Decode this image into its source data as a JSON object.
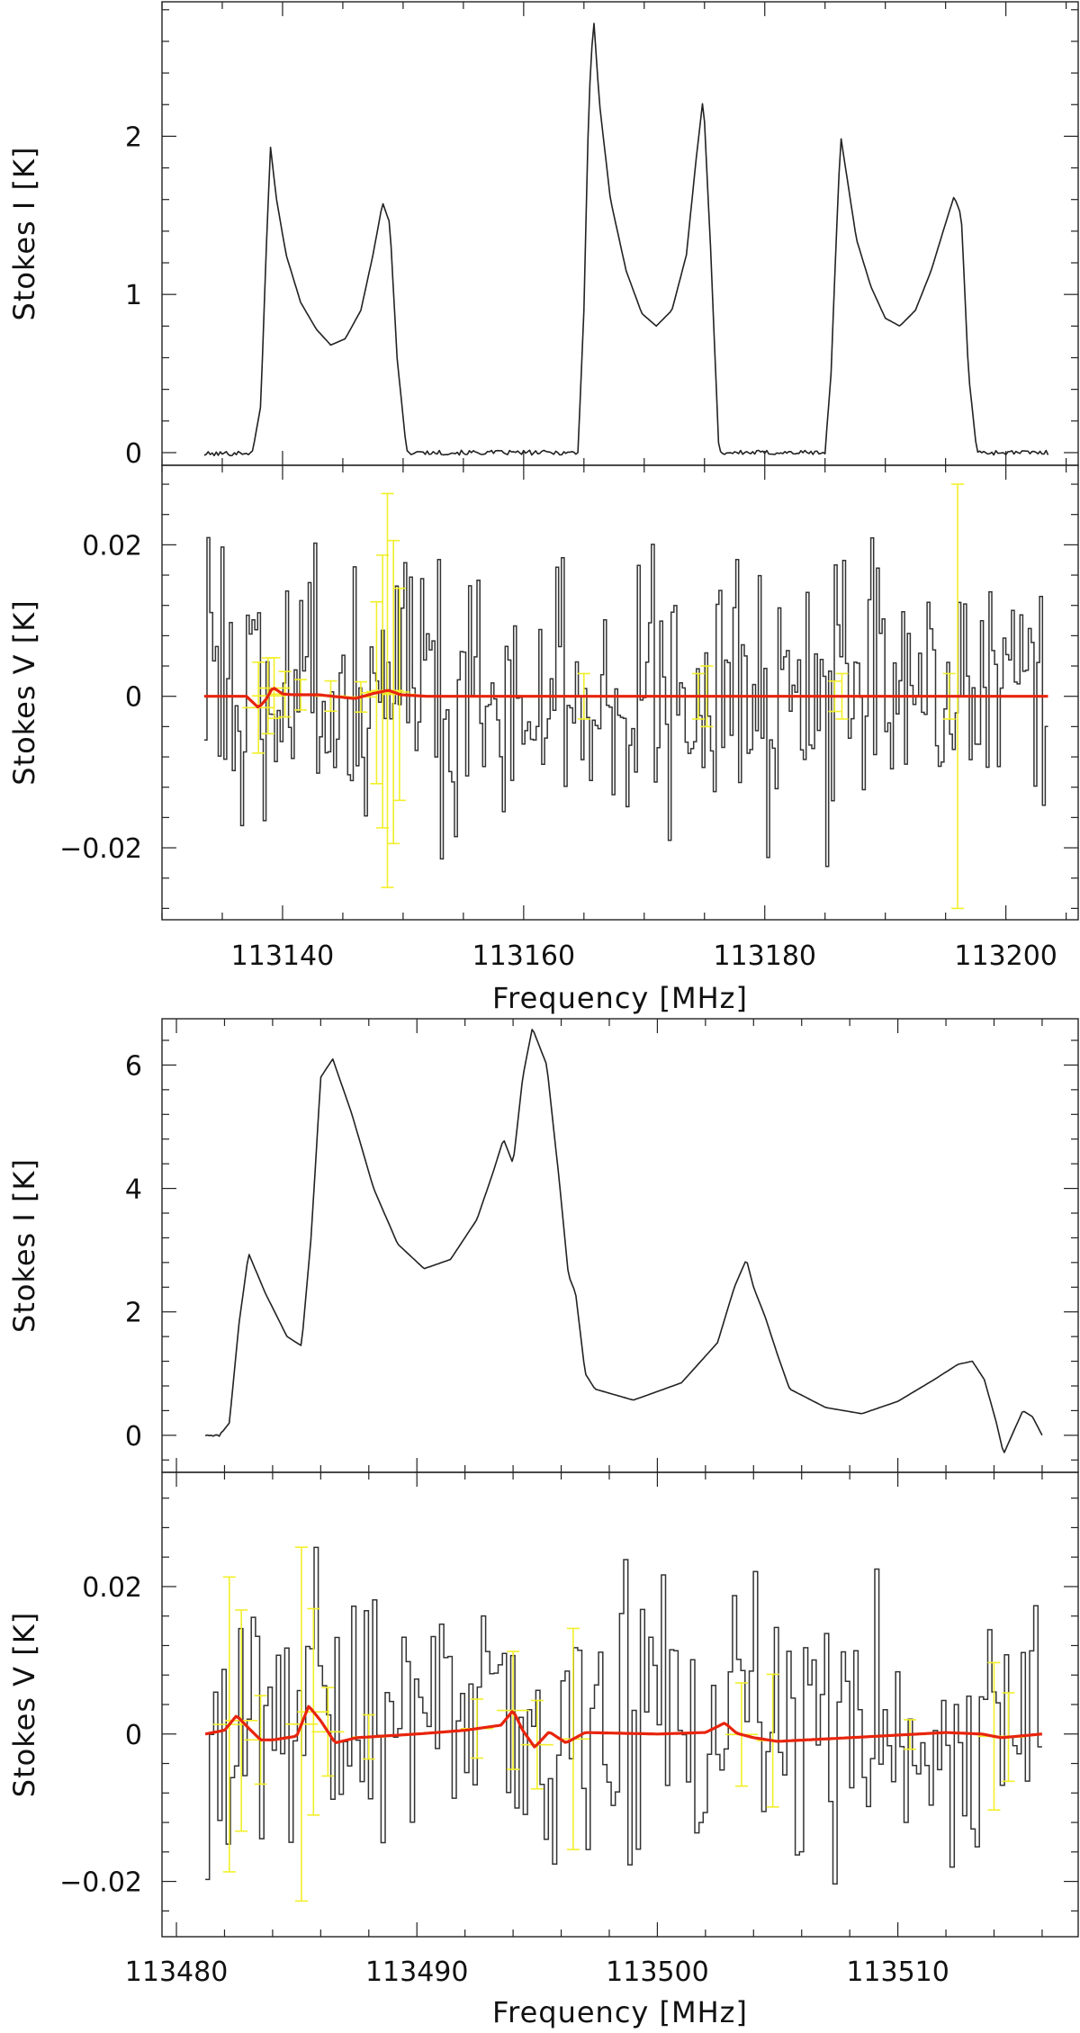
{
  "chart_data": [
    {
      "type": "line",
      "name": "upper-stokes-i",
      "ylabel": "Stokes I [K]",
      "xlim": [
        113130,
        113206
      ],
      "ylim": [
        -0.08,
        2.85
      ],
      "yticks": [
        0,
        1,
        2
      ],
      "ytick_labels": [
        "0",
        "1",
        "2"
      ],
      "series": [
        {
          "name": "Stokes I",
          "x": [
            113133.5,
            113137.5,
            113138.2,
            113138.6,
            113139.0,
            113139.5,
            113140.3,
            113141.5,
            113142.8,
            113144.0,
            113145.2,
            113146.5,
            113147.5,
            113148.3,
            113148.9,
            113149.5,
            113150.3,
            113160,
            113164.5,
            113165.0,
            113165.4,
            113165.8,
            113166.3,
            113167.2,
            113168.5,
            113169.8,
            113171.0,
            113172.3,
            113173.5,
            113174.3,
            113174.9,
            113175.5,
            113176.2,
            113185,
            113185.5,
            113185.9,
            113186.3,
            113186.8,
            113187.6,
            113188.8,
            113190.0,
            113191.2,
            113192.5,
            113193.8,
            113195.0,
            113195.7,
            113196.3,
            113196.9,
            113197.6,
            113203.5
          ],
          "y": [
            -0.01,
            0.0,
            0.3,
            1.2,
            1.93,
            1.6,
            1.25,
            0.95,
            0.78,
            0.68,
            0.72,
            0.9,
            1.25,
            1.58,
            1.45,
            0.6,
            0.0,
            0.0,
            0.0,
            0.9,
            2.2,
            2.75,
            2.2,
            1.6,
            1.15,
            0.88,
            0.8,
            0.9,
            1.25,
            1.85,
            2.25,
            1.3,
            0.0,
            0.0,
            0.5,
            1.3,
            2.0,
            1.75,
            1.35,
            1.05,
            0.85,
            0.8,
            0.9,
            1.15,
            1.45,
            1.62,
            1.5,
            0.5,
            0.0,
            0.0
          ]
        }
      ]
    },
    {
      "type": "line",
      "name": "upper-stokes-v",
      "ylabel": "Stokes V [K]",
      "xlabel": "Frequency [MHz]",
      "xlim": [
        113130,
        113206
      ],
      "ylim": [
        -0.0295,
        0.0305
      ],
      "xticks": [
        113140,
        113160,
        113180,
        113200
      ],
      "xtick_labels": [
        "113140",
        "113160",
        "113180",
        "113200"
      ],
      "yticks": [
        -0.02,
        0,
        0.02
      ],
      "ytick_labels": [
        "−0.02",
        "0",
        "0.02"
      ],
      "noise_sigma": 0.009,
      "model": {
        "x": [
          113133.5,
          113137,
          113138,
          113138.6,
          113139.2,
          113140,
          113141,
          113143,
          113146,
          113147.6,
          113148.8,
          113149.8,
          113152,
          113200,
          113203.5
        ],
        "y": [
          0,
          0,
          -0.0015,
          -0.0005,
          0.0012,
          0.0003,
          0.0002,
          0.0002,
          -0.0003,
          0.0004,
          0.0008,
          0.0002,
          0,
          0,
          0
        ]
      },
      "error_bars": [
        {
          "x": 113138.0,
          "err": 0.006
        },
        {
          "x": 113138.8,
          "err": 0.005
        },
        {
          "x": 113139.3,
          "err": 0.004
        },
        {
          "x": 113140.2,
          "err": 0.003
        },
        {
          "x": 113141.5,
          "err": 0.002
        },
        {
          "x": 113144.0,
          "err": 0.002
        },
        {
          "x": 113146.5,
          "err": 0.002
        },
        {
          "x": 113147.8,
          "err": 0.012
        },
        {
          "x": 113148.3,
          "err": 0.018
        },
        {
          "x": 113148.7,
          "err": 0.026
        },
        {
          "x": 113149.2,
          "err": 0.02
        },
        {
          "x": 113149.7,
          "err": 0.014
        },
        {
          "x": 113165.0,
          "err": 0.003
        },
        {
          "x": 113174.5,
          "err": 0.003
        },
        {
          "x": 113175.2,
          "err": 0.004
        },
        {
          "x": 113185.8,
          "err": 0.002
        },
        {
          "x": 113186.4,
          "err": 0.003
        },
        {
          "x": 113195.3,
          "err": 0.003
        },
        {
          "x": 113196.0,
          "err": 0.028
        }
      ]
    },
    {
      "type": "line",
      "name": "lower-stokes-i",
      "ylabel": "Stokes I [K]",
      "xlim": [
        113479.4,
        113517.5
      ],
      "ylim": [
        -0.6,
        6.75
      ],
      "yticks": [
        0,
        2,
        4,
        6
      ],
      "ytick_labels": [
        "0",
        "2",
        "4",
        "6"
      ],
      "series": [
        {
          "name": "Stokes I",
          "x": [
            113481.2,
            113481.8,
            113482.2,
            113482.6,
            113483.0,
            113483.7,
            113484.6,
            113485.2,
            113485.6,
            113486.0,
            113486.5,
            113487.3,
            113488.2,
            113489.2,
            113490.3,
            113491.4,
            113492.5,
            113493.2,
            113493.6,
            113494.0,
            113494.4,
            113494.8,
            113495.4,
            113495.9,
            113496.3,
            113496.6,
            113497.0,
            113497.4,
            113499.0,
            113501.0,
            113502.5,
            113503.2,
            113503.7,
            113504.0,
            113504.5,
            113505.0,
            113505.5,
            113507.0,
            113508.5,
            113510.0,
            113511.5,
            113512.5,
            113513.1,
            113513.6,
            113514.1,
            113514.4,
            113514.8,
            113515.2,
            113515.6,
            113516.0
          ],
          "y": [
            0.0,
            0.0,
            0.2,
            1.8,
            2.95,
            2.3,
            1.6,
            1.45,
            3.2,
            5.8,
            6.1,
            5.2,
            4.0,
            3.1,
            2.7,
            2.85,
            3.5,
            4.3,
            4.8,
            4.4,
            5.8,
            6.6,
            6.0,
            4.2,
            2.6,
            2.3,
            1.0,
            0.75,
            0.57,
            0.85,
            1.5,
            2.4,
            2.85,
            2.4,
            1.9,
            1.3,
            0.75,
            0.45,
            0.35,
            0.55,
            0.9,
            1.15,
            1.2,
            0.9,
            0.2,
            -0.3,
            0.05,
            0.4,
            0.3,
            0.0
          ]
        }
      ]
    },
    {
      "type": "line",
      "name": "lower-stokes-v",
      "ylabel": "Stokes V [K]",
      "xlabel": "Frequency [MHz]",
      "xlim": [
        113479.4,
        113517.5
      ],
      "ylim": [
        -0.0275,
        0.0355
      ],
      "xticks": [
        113480,
        113490,
        113500,
        113510
      ],
      "xtick_labels": [
        "113480",
        "113490",
        "113500",
        "113510"
      ],
      "yticks": [
        -0.02,
        0,
        0.02
      ],
      "ytick_labels": [
        "−0.02",
        "0",
        "0.02"
      ],
      "noise_sigma": 0.009,
      "model": {
        "x": [
          113481.2,
          113482.0,
          113482.5,
          113483.0,
          113483.5,
          113484.0,
          113485.0,
          113485.5,
          113486.0,
          113486.6,
          113487.5,
          113490.0,
          113492.0,
          113493.5,
          113494.0,
          113494.4,
          113494.9,
          113495.5,
          113496.2,
          113497.0,
          113500.0,
          113502.0,
          113502.8,
          113503.3,
          113504.0,
          113505.0,
          113508,
          113512,
          113513.5,
          113514.3,
          113516.0
        ],
        "y": [
          0,
          0.0005,
          0.0025,
          0.0008,
          -0.0008,
          -0.0008,
          -0.0003,
          0.0038,
          0.0018,
          -0.0012,
          -0.0005,
          0,
          0.0005,
          0.0012,
          0.0032,
          0.0005,
          -0.0018,
          0.0003,
          -0.0012,
          0.0002,
          0,
          0.0002,
          0.0015,
          0.0001,
          -0.0005,
          -0.001,
          -0.0005,
          0.0002,
          0,
          -0.0005,
          0
        ]
      },
      "error_bars": [
        {
          "x": 113482.2,
          "err": 0.02
        },
        {
          "x": 113482.7,
          "err": 0.015
        },
        {
          "x": 113483.5,
          "err": 0.006
        },
        {
          "x": 113485.2,
          "err": 0.024
        },
        {
          "x": 113485.7,
          "err": 0.014
        },
        {
          "x": 113486.3,
          "err": 0.006
        },
        {
          "x": 113488.0,
          "err": 0.003
        },
        {
          "x": 113492.5,
          "err": 0.004
        },
        {
          "x": 113494.0,
          "err": 0.008
        },
        {
          "x": 113495.0,
          "err": 0.006
        },
        {
          "x": 113496.5,
          "err": 0.015
        },
        {
          "x": 113503.5,
          "err": 0.007
        },
        {
          "x": 113504.8,
          "err": 0.009
        },
        {
          "x": 113510.5,
          "err": 0.002
        },
        {
          "x": 113514.0,
          "err": 0.01
        },
        {
          "x": 113514.6,
          "err": 0.006
        }
      ]
    }
  ]
}
